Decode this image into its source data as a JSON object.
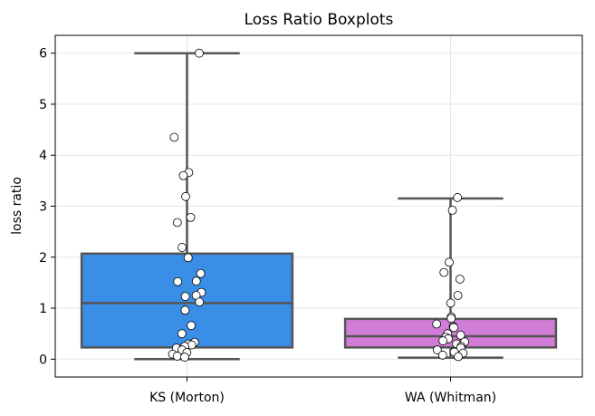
{
  "chart_data": {
    "type": "box",
    "title": "Loss Ratio Boxplots",
    "xlabel": "",
    "ylabel": "loss ratio",
    "categories": [
      "KS (Morton)",
      "WA (Whitman)"
    ],
    "ylim": [
      -0.35,
      6.35
    ],
    "yticks": [
      0,
      1,
      2,
      3,
      4,
      5,
      6
    ],
    "grid": true,
    "boxes": [
      {
        "category": "KS (Morton)",
        "color": "#3a8ee6",
        "whisker_low": 0.0,
        "q1": 0.23,
        "median": 1.1,
        "q3": 2.07,
        "whisker_high": 6.0,
        "points": [
          6.0,
          4.35,
          3.66,
          3.6,
          3.19,
          2.78,
          2.68,
          2.19,
          1.99,
          1.68,
          1.53,
          1.52,
          1.31,
          1.25,
          1.23,
          1.12,
          0.96,
          0.66,
          0.5,
          0.33,
          0.3,
          0.28,
          0.25,
          0.22,
          0.18,
          0.13,
          0.1,
          0.06,
          0.04
        ]
      },
      {
        "category": "WA (Whitman)",
        "color": "#d17cd6",
        "whisker_low": 0.03,
        "q1": 0.23,
        "median": 0.45,
        "q3": 0.79,
        "whisker_high": 3.15,
        "points": [
          3.17,
          2.92,
          1.9,
          1.7,
          1.57,
          1.25,
          1.1,
          0.83,
          0.8,
          0.69,
          0.64,
          0.62,
          0.5,
          0.47,
          0.43,
          0.4,
          0.36,
          0.34,
          0.3,
          0.25,
          0.22,
          0.18,
          0.14,
          0.12,
          0.08,
          0.05
        ]
      }
    ]
  }
}
